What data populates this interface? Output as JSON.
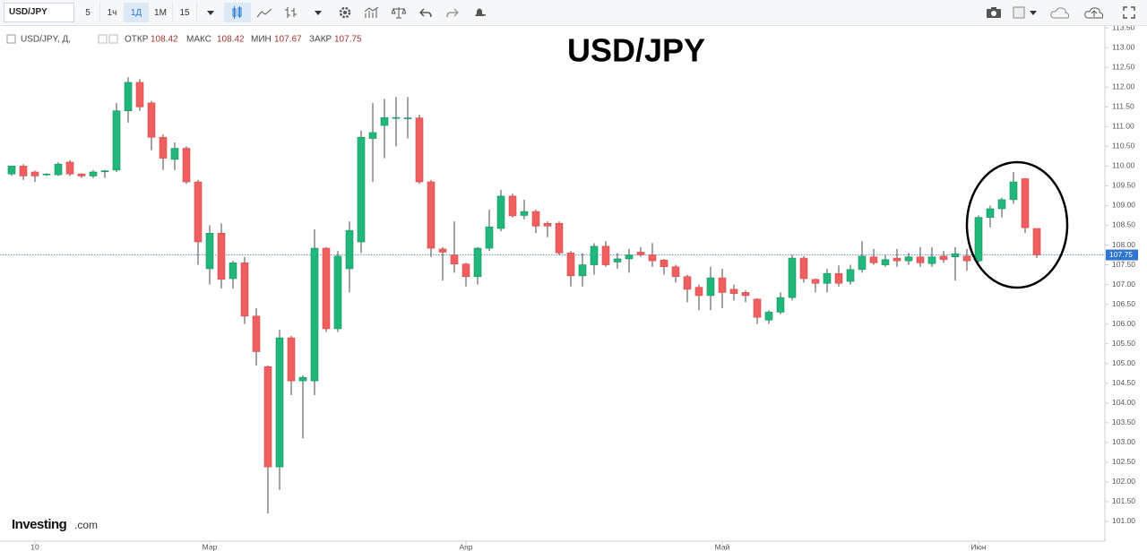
{
  "toolbar": {
    "symbol": "USD/JPY",
    "intervals": [
      "5",
      "1ч",
      "1Д",
      "1М",
      "15"
    ]
  },
  "chart_data": {
    "type": "candlestick",
    "title": "USD/JPY",
    "legend": {
      "symbol": "USD/JPY, Д,",
      "open_label": "ОТКР",
      "high_label": "МАКС",
      "low_label": "МИН",
      "close_label": "ЗАКР"
    },
    "source": {
      "name": "Investing",
      "suffix": ".com"
    },
    "up_color": "#1fb77a",
    "down_color": "#ef5f5f",
    "categories": [
      null,
      null,
      "10",
      null,
      null,
      null,
      null,
      null,
      null,
      null,
      null,
      null,
      null,
      null,
      null,
      null,
      null,
      "Мар",
      null,
      null,
      null,
      null,
      null,
      null,
      null,
      null,
      null,
      null,
      null,
      null,
      null,
      null,
      null,
      null,
      null,
      null,
      null,
      null,
      null,
      "Апр",
      null,
      null,
      null,
      null,
      null,
      null,
      null,
      null,
      null,
      null,
      null,
      null,
      null,
      null,
      null,
      null,
      null,
      null,
      null,
      null,
      null,
      "Май",
      null,
      null,
      null,
      null,
      null,
      null,
      null,
      null,
      null,
      null,
      null,
      null,
      null,
      null,
      null,
      null,
      null,
      null,
      null,
      null,
      null,
      "Июн",
      null,
      null,
      null,
      null,
      null
    ],
    "open": [
      109.8,
      110.0,
      109.85,
      109.78,
      109.78,
      110.1,
      109.8,
      109.75,
      109.87,
      109.9,
      111.4,
      112.12,
      111.6,
      110.73,
      110.17,
      110.45,
      109.6,
      107.4,
      108.3,
      107.15,
      107.55,
      106.2,
      104.92,
      102.38,
      105.65,
      104.56,
      104.56,
      107.92,
      105.88,
      107.4,
      108.08,
      110.7,
      111.03,
      111.23,
      111.22,
      111.22,
      109.6,
      107.9,
      107.75,
      107.52,
      107.2,
      107.92,
      108.42,
      109.24,
      108.75,
      108.85,
      108.55,
      108.55,
      107.8,
      107.22,
      107.5,
      107.97,
      107.57,
      107.65,
      107.82,
      107.75,
      107.62,
      107.45,
      107.2,
      106.93,
      106.72,
      107.17,
      106.88,
      106.8,
      106.63,
      106.1,
      106.3,
      106.67,
      107.67,
      107.13,
      107.03,
      107.28,
      107.08,
      107.38,
      107.7,
      107.5,
      107.67,
      107.6,
      107.7,
      107.53,
      107.72,
      107.7,
      107.72,
      107.6,
      108.7,
      108.92,
      109.15,
      109.68,
      108.42
    ],
    "high": [
      110.0,
      110.05,
      109.88,
      109.82,
      110.1,
      110.15,
      109.82,
      109.9,
      109.9,
      111.6,
      112.25,
      112.2,
      111.65,
      110.8,
      110.6,
      110.5,
      109.65,
      108.5,
      108.55,
      107.6,
      107.7,
      106.4,
      104.95,
      105.85,
      105.7,
      104.7,
      108.4,
      107.95,
      107.85,
      108.6,
      110.9,
      111.6,
      111.7,
      111.75,
      111.75,
      111.3,
      109.65,
      107.95,
      108.6,
      107.55,
      107.95,
      108.9,
      109.4,
      109.3,
      109.15,
      108.9,
      108.6,
      108.6,
      107.85,
      107.8,
      108.05,
      108.1,
      107.8,
      107.9,
      107.95,
      108.05,
      107.65,
      107.5,
      107.25,
      107.0,
      107.45,
      107.4,
      107.0,
      106.85,
      106.65,
      106.35,
      106.8,
      107.75,
      107.72,
      107.15,
      107.4,
      107.48,
      107.5,
      108.1,
      107.9,
      107.75,
      107.9,
      107.8,
      107.95,
      107.95,
      107.85,
      107.95,
      107.9,
      108.75,
      109.0,
      109.2,
      109.85,
      109.7,
      108.42
    ],
    "low": [
      109.75,
      109.65,
      109.6,
      109.75,
      109.75,
      109.75,
      109.7,
      109.7,
      109.7,
      109.85,
      111.1,
      111.4,
      110.4,
      109.9,
      109.9,
      109.55,
      107.5,
      107.0,
      106.9,
      106.9,
      106.0,
      104.95,
      101.2,
      101.8,
      104.2,
      103.1,
      104.2,
      105.8,
      105.8,
      106.8,
      107.8,
      109.6,
      110.2,
      110.5,
      110.7,
      109.55,
      107.7,
      107.1,
      107.3,
      106.95,
      107.0,
      107.85,
      108.35,
      108.7,
      108.65,
      108.3,
      108.2,
      107.75,
      106.95,
      106.95,
      107.25,
      107.45,
      107.4,
      107.3,
      107.7,
      107.45,
      107.25,
      107.05,
      106.55,
      106.35,
      106.35,
      106.4,
      106.6,
      106.55,
      106.0,
      106.0,
      106.25,
      106.6,
      107.05,
      106.8,
      106.8,
      106.95,
      107.0,
      107.3,
      107.5,
      107.45,
      107.45,
      107.5,
      107.45,
      107.45,
      107.55,
      107.1,
      107.35,
      107.55,
      108.45,
      108.7,
      109.05,
      108.3,
      107.67
    ],
    "close": [
      110.0,
      109.75,
      109.75,
      109.8,
      110.05,
      109.8,
      109.75,
      109.85,
      109.88,
      111.4,
      112.12,
      111.5,
      110.73,
      110.2,
      110.45,
      109.6,
      108.08,
      108.3,
      107.13,
      107.55,
      106.2,
      105.3,
      102.38,
      105.65,
      104.56,
      104.65,
      107.92,
      105.88,
      107.72,
      108.37,
      110.73,
      110.85,
      111.23,
      111.23,
      111.22,
      109.6,
      107.92,
      107.82,
      107.52,
      107.2,
      107.92,
      108.46,
      109.24,
      108.74,
      108.85,
      108.48,
      108.48,
      107.8,
      107.22,
      107.5,
      107.97,
      107.5,
      107.65,
      107.75,
      107.75,
      107.6,
      107.45,
      107.2,
      106.88,
      106.72,
      107.17,
      106.8,
      106.77,
      106.72,
      106.17,
      106.3,
      106.67,
      107.67,
      107.15,
      107.03,
      107.28,
      107.03,
      107.38,
      107.72,
      107.55,
      107.63,
      107.6,
      107.7,
      107.55,
      107.7,
      107.63,
      107.78,
      107.6,
      108.7,
      108.92,
      109.15,
      109.6,
      108.44,
      107.75
    ],
    "current_price": 107.75,
    "current_price_color": "#2f74d0",
    "ylim": [
      100.5,
      113.64
    ],
    "yticks": [
      {
        "value": 101,
        "label": "101.00"
      },
      {
        "value": 101.5,
        "label": "101.50"
      },
      {
        "value": 102,
        "label": "102.00"
      },
      {
        "value": 102.5,
        "label": "102.50"
      },
      {
        "value": 103,
        "label": "103.00"
      },
      {
        "value": 103.5,
        "label": "103.50"
      },
      {
        "value": 104,
        "label": "104.00"
      },
      {
        "value": 104.5,
        "label": "104.50"
      },
      {
        "value": 105,
        "label": "105.00"
      },
      {
        "value": 105.5,
        "label": "105.50"
      },
      {
        "value": 106,
        "label": "106.00"
      },
      {
        "value": 106.5,
        "label": "106.50"
      },
      {
        "value": 107,
        "label": "107.00"
      },
      {
        "value": 107.5,
        "label": "107.50"
      },
      {
        "value": 108,
        "label": "108.00"
      },
      {
        "value": 108.5,
        "label": "108.50"
      },
      {
        "value": 109,
        "label": "109.00"
      },
      {
        "value": 109.5,
        "label": "109.50"
      },
      {
        "value": 110,
        "label": "110.00"
      },
      {
        "value": 110.5,
        "label": "110.50"
      },
      {
        "value": 111,
        "label": "111.00"
      },
      {
        "value": 111.5,
        "label": "111.50"
      },
      {
        "value": 112,
        "label": "112.00"
      },
      {
        "value": 112.5,
        "label": "112.50"
      },
      {
        "value": 113,
        "label": "113.00"
      },
      {
        "value": 113.5,
        "label": "113.50"
      }
    ],
    "grid": false
  }
}
